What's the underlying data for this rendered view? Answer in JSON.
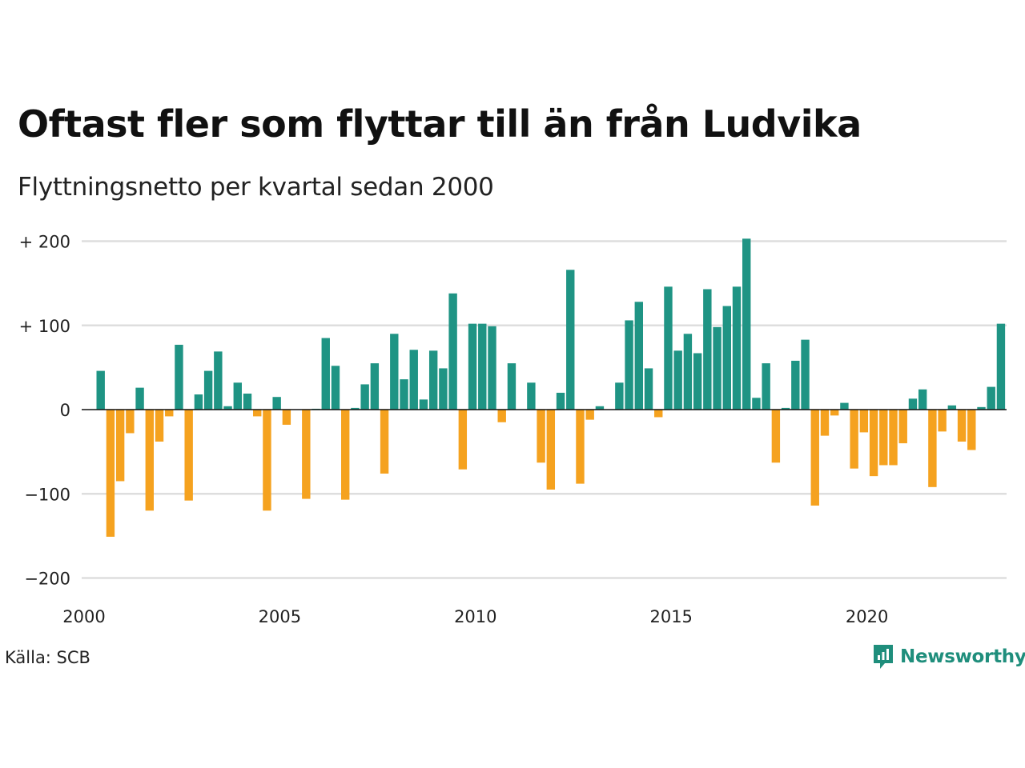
{
  "header": {
    "title": "Oftast fler som flyttar till än från Ludvika",
    "subtitle": "Flyttningsnetto per kvartal sedan 2000"
  },
  "footer": {
    "source": "Källa: SCB",
    "brand": "Newsworthy",
    "brand_icon": "newsworthy-logo-icon"
  },
  "colors": {
    "positive": "#1f9484",
    "negative": "#f5a21f",
    "grid": "#dedede",
    "brand": "#1f8e7c"
  },
  "chart_data": {
    "type": "bar",
    "ylim": [
      -200,
      200
    ],
    "yticks": [
      {
        "value": 200,
        "label": "+ 200"
      },
      {
        "value": 100,
        "label": "+ 100"
      },
      {
        "value": 0,
        "label": "0"
      },
      {
        "value": -100,
        "label": "−100"
      },
      {
        "value": -200,
        "label": "−200"
      }
    ],
    "xticks": [
      "2000",
      "2005",
      "2010",
      "2015",
      "2020"
    ],
    "grid": true,
    "start": "2000 Q1",
    "values": [
      46,
      -151,
      -85,
      -28,
      26,
      -120,
      -38,
      -8,
      77,
      -108,
      18,
      46,
      69,
      4,
      32,
      19,
      -8,
      -120,
      15,
      -18,
      0,
      -106,
      1,
      85,
      52,
      -107,
      2,
      30,
      55,
      -76,
      90,
      36,
      71,
      12,
      70,
      49,
      138,
      -71,
      102,
      102,
      99,
      -15,
      55,
      0,
      32,
      -63,
      -95,
      20,
      166,
      -88,
      -12,
      4,
      0,
      32,
      106,
      128,
      49,
      -9,
      146,
      70,
      90,
      67,
      143,
      98,
      123,
      146,
      203,
      14,
      55,
      -63,
      2,
      58,
      83,
      -114,
      -31,
      -7,
      8,
      -70,
      -27,
      -79,
      -66,
      -66,
      -40,
      13,
      24,
      -92,
      -26,
      5,
      -38,
      -48,
      3,
      27,
      102
    ]
  }
}
